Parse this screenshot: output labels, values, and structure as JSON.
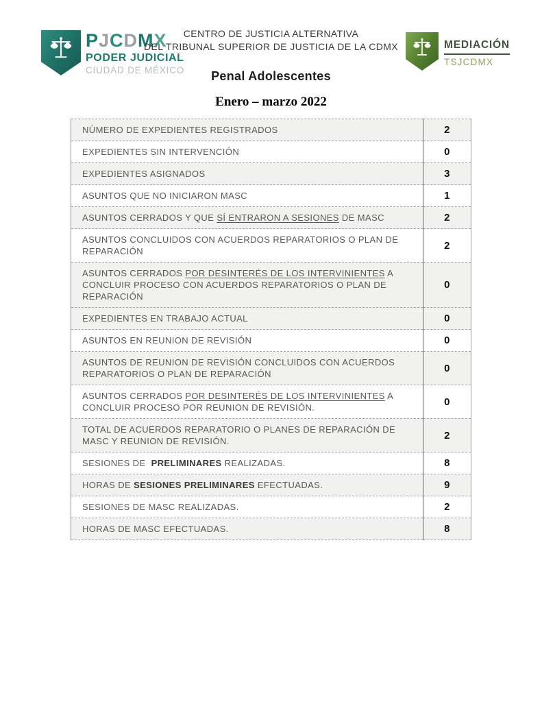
{
  "header": {
    "org_line1": "CENTRO DE JUSTICIA ALTERNATIVA",
    "org_line2": "DEL TRIBUNAL SUPERIOR DE JUSTICIA DE LA CDMX",
    "title": "Penal Adolescentes",
    "period": "Enero – marzo 2022"
  },
  "logo_left": {
    "letters": [
      {
        "ch": "P",
        "color": "#1d7a6e"
      },
      {
        "ch": "J",
        "color": "#989ea2"
      },
      {
        "ch": "C",
        "color": "#2a8c80"
      },
      {
        "ch": "D",
        "color": "#989ea2"
      },
      {
        "ch": "M",
        "color": "#1d7a6e"
      },
      {
        "ch": "X",
        "color": "#55a597"
      }
    ],
    "line1": "PODER JUDICIAL",
    "line2": "CIUDAD DE MÉXICO",
    "teal": "#1d7a6e",
    "gray": "#b7bcbe"
  },
  "logo_right": {
    "title": "MEDIACIÓN",
    "subtitle": "TSJCDMX",
    "title_color": "#41523f",
    "subtitle_color": "#8fa363"
  },
  "table": {
    "shade_color": "#f1f1f0",
    "rows": [
      {
        "segments": [
          {
            "t": "NÚMERO DE EXPEDIENTES REGISTRADOS"
          }
        ],
        "value": "2",
        "shaded": true
      },
      {
        "segments": [
          {
            "t": "EXPEDIENTES SIN INTERVENCIÓN"
          }
        ],
        "value": "0",
        "shaded": false
      },
      {
        "segments": [
          {
            "t": "EXPEDIENTES ASIGNADOS"
          }
        ],
        "value": "3",
        "shaded": true
      },
      {
        "segments": [
          {
            "t": "ASUNTOS QUE NO INICIARON MASC"
          }
        ],
        "value": "1",
        "shaded": false
      },
      {
        "segments": [
          {
            "t": "ASUNTOS CERRADOS Y QUE "
          },
          {
            "t": "SÍ ENTRARON A SESIONES",
            "u": true
          },
          {
            "t": " DE MASC"
          }
        ],
        "value": "2",
        "shaded": true
      },
      {
        "segments": [
          {
            "t": "ASUNTOS CONCLUIDOS CON ACUERDOS REPARATORIOS O PLAN DE REPARACIÓN"
          }
        ],
        "value": "2",
        "shaded": false
      },
      {
        "segments": [
          {
            "t": "ASUNTOS CERRADOS "
          },
          {
            "t": "POR DESINTERÉS DE LOS INTERVINIENTES",
            "u": true
          },
          {
            "t": " A CONCLUIR PROCESO CON ACUERDOS REPARATORIOS O PLAN DE REPARACIÓN"
          }
        ],
        "value": "0",
        "shaded": true
      },
      {
        "segments": [
          {
            "t": "EXPEDIENTES EN TRABAJO ACTUAL"
          }
        ],
        "value": "0",
        "shaded": true
      },
      {
        "segments": [
          {
            "t": "ASUNTOS EN REUNION DE REVISIÓN"
          }
        ],
        "value": "0",
        "shaded": false
      },
      {
        "segments": [
          {
            "t": "ASUNTOS DE REUNION DE REVISIÓN CONCLUIDOS CON ACUERDOS REPARATORIOS O PLAN DE REPARACIÓN"
          }
        ],
        "value": "0",
        "shaded": true
      },
      {
        "segments": [
          {
            "t": "ASUNTOS CERRADOS "
          },
          {
            "t": "POR DESINTERÉS DE LOS INTERVINIENTES",
            "u": true
          },
          {
            "t": " A CONCLUIR PROCESO POR REUNION DE REVISIÓN."
          }
        ],
        "value": "0",
        "shaded": false
      },
      {
        "segments": [
          {
            "t": "TOTAL DE ACUERDOS REPARATORIO O PLANES DE REPARACIÓN DE MASC Y REUNION DE REVISIÓN."
          }
        ],
        "value": "2",
        "shaded": true
      },
      {
        "segments": [
          {
            "t": "SESIONES DE  "
          },
          {
            "t": "PRELIMINARES",
            "b": true
          },
          {
            "t": " REALIZADAS."
          }
        ],
        "value": "8",
        "shaded": false
      },
      {
        "segments": [
          {
            "t": "HORAS DE "
          },
          {
            "t": "SESIONES PRELIMINARES",
            "b": true
          },
          {
            "t": " EFECTUADAS."
          }
        ],
        "value": "9",
        "shaded": true
      },
      {
        "segments": [
          {
            "t": "SESIONES DE MASC REALIZADAS."
          }
        ],
        "value": "2",
        "shaded": false
      },
      {
        "segments": [
          {
            "t": "HORAS DE MASC EFECTUADAS."
          }
        ],
        "value": "8",
        "shaded": true
      }
    ]
  }
}
